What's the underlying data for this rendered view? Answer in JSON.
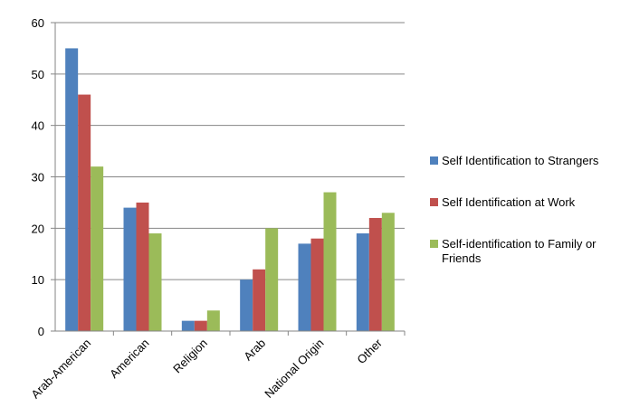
{
  "chart_data": {
    "type": "bar",
    "title": "",
    "xlabel": "",
    "ylabel": "",
    "categories": [
      "Arab-American",
      "American",
      "Religion",
      "Arab",
      "National Origin",
      "Other"
    ],
    "series": [
      {
        "name": "Self Identification to Strangers",
        "color": "#4F81BD",
        "values": [
          55,
          24,
          2,
          10,
          17,
          19
        ]
      },
      {
        "name": "Self Identification at Work",
        "color": "#C0504D",
        "values": [
          46,
          25,
          2,
          12,
          18,
          22
        ]
      },
      {
        "name": "Self-identification to Family or Friends",
        "color": "#9BBB59",
        "values": [
          32,
          19,
          4,
          20,
          27,
          23
        ]
      }
    ],
    "ylim": [
      0,
      60
    ],
    "yticks": [
      0,
      10,
      20,
      30,
      40,
      50,
      60
    ],
    "grid": true,
    "legend_position": "right"
  }
}
